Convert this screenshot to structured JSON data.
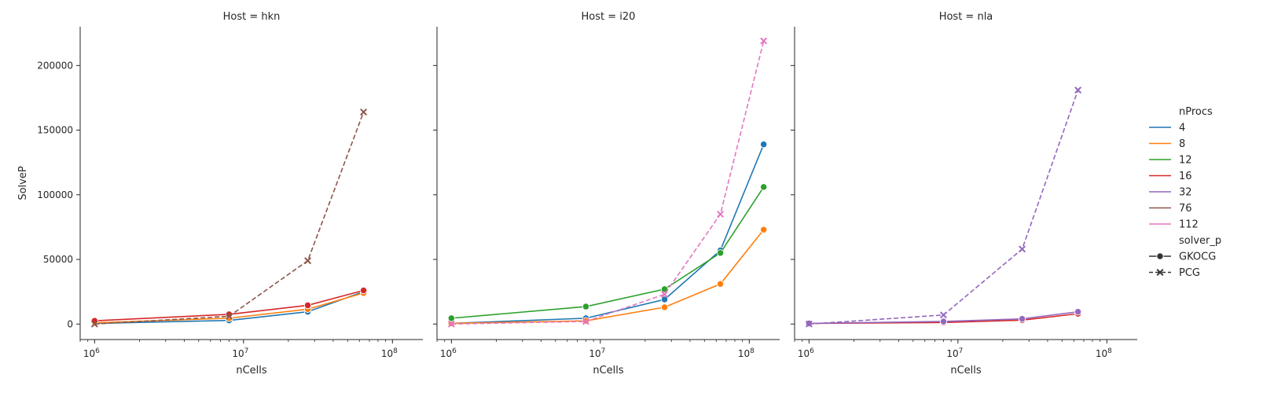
{
  "chart_data": {
    "type": "line",
    "xlabel": "nCells",
    "ylabel": "SolveP",
    "xscale": "log",
    "xlim": [
      800000,
      160000000
    ],
    "ylim": [
      -12000,
      230000
    ],
    "x_ticks": [
      {
        "value": 1000000,
        "base": "10",
        "exp": "6"
      },
      {
        "value": 10000000,
        "base": "10",
        "exp": "7"
      },
      {
        "value": 100000000,
        "base": "10",
        "exp": "8"
      }
    ],
    "y_ticks": [
      {
        "value": 0,
        "label": "0"
      },
      {
        "value": 50000,
        "label": "50000"
      },
      {
        "value": 100000,
        "label": "100000"
      },
      {
        "value": 150000,
        "label": "150000"
      },
      {
        "value": 200000,
        "label": "200000"
      }
    ],
    "grid": false,
    "legend": {
      "placement": "right",
      "hue_title": "nProcs",
      "hue_entries": [
        {
          "label": "4",
          "color": "#1f77b4"
        },
        {
          "label": "8",
          "color": "#ff7f0e"
        },
        {
          "label": "12",
          "color": "#2ca02c"
        },
        {
          "label": "16",
          "color": "#d62728"
        },
        {
          "label": "32",
          "color": "#9467bd"
        },
        {
          "label": "76",
          "color": "#8c564b"
        },
        {
          "label": "112",
          "color": "#e377c2"
        }
      ],
      "style_title": "solver_p",
      "style_entries": [
        {
          "label": "GKOCG",
          "marker": "circle",
          "dash": "solid"
        },
        {
          "label": "PCG",
          "marker": "x",
          "dash": "dashed"
        }
      ]
    },
    "panels": [
      {
        "title": "Host = hkn",
        "series": [
          {
            "nProcs": "4",
            "solver": "GKOCG",
            "color": "#1f77b4",
            "x": [
              1000000,
              8000000,
              27000000,
              64000000
            ],
            "y": [
              500,
              2800,
              9500,
              25000
            ]
          },
          {
            "nProcs": "8",
            "solver": "GKOCG",
            "color": "#ff7f0e",
            "x": [
              1000000,
              8000000,
              27000000,
              64000000
            ],
            "y": [
              1000,
              4500,
              11500,
              24000
            ]
          },
          {
            "nProcs": "16",
            "solver": "GKOCG",
            "color": "#d62728",
            "x": [
              1000000,
              8000000,
              27000000,
              64000000
            ],
            "y": [
              2500,
              7500,
              14500,
              26000
            ]
          },
          {
            "nProcs": "76",
            "solver": "PCG",
            "color": "#8c564b",
            "x": [
              1000000,
              8000000,
              27000000,
              64000000
            ],
            "y": [
              0,
              6000,
              49000,
              164000
            ]
          }
        ]
      },
      {
        "title": "Host = i20",
        "series": [
          {
            "nProcs": "4",
            "solver": "GKOCG",
            "color": "#1f77b4",
            "x": [
              1000000,
              8000000,
              27000000,
              64000000,
              125000000
            ],
            "y": [
              500,
              4500,
              19000,
              57000,
              139000
            ]
          },
          {
            "nProcs": "8",
            "solver": "GKOCG",
            "color": "#ff7f0e",
            "x": [
              1000000,
              8000000,
              27000000,
              64000000,
              125000000
            ],
            "y": [
              500,
              2500,
              13000,
              31000,
              73000
            ]
          },
          {
            "nProcs": "12",
            "solver": "GKOCG",
            "color": "#2ca02c",
            "x": [
              1000000,
              8000000,
              27000000,
              64000000,
              125000000
            ],
            "y": [
              4500,
              13500,
              27000,
              55000,
              106000
            ]
          },
          {
            "nProcs": "112",
            "solver": "PCG",
            "color": "#e377c2",
            "x": [
              1000000,
              8000000,
              27000000,
              64000000,
              125000000
            ],
            "y": [
              0,
              2000,
              23000,
              85000,
              219000
            ]
          }
        ]
      },
      {
        "title": "Host = nla",
        "series": [
          {
            "nProcs": "16",
            "solver": "GKOCG",
            "color": "#d62728",
            "x": [
              1000000,
              8000000,
              27000000,
              64000000
            ],
            "y": [
              500,
              1200,
              3000,
              8000
            ]
          },
          {
            "nProcs": "32",
            "solver": "GKOCG",
            "color": "#9467bd",
            "x": [
              1000000,
              8000000,
              27000000,
              64000000
            ],
            "y": [
              500,
              2000,
              4000,
              9500
            ]
          },
          {
            "nProcs": "32",
            "solver": "PCG",
            "color": "#9467bd",
            "x": [
              1000000,
              8000000,
              27000000,
              64000000
            ],
            "y": [
              0,
              7000,
              58000,
              181000
            ]
          }
        ]
      }
    ]
  }
}
